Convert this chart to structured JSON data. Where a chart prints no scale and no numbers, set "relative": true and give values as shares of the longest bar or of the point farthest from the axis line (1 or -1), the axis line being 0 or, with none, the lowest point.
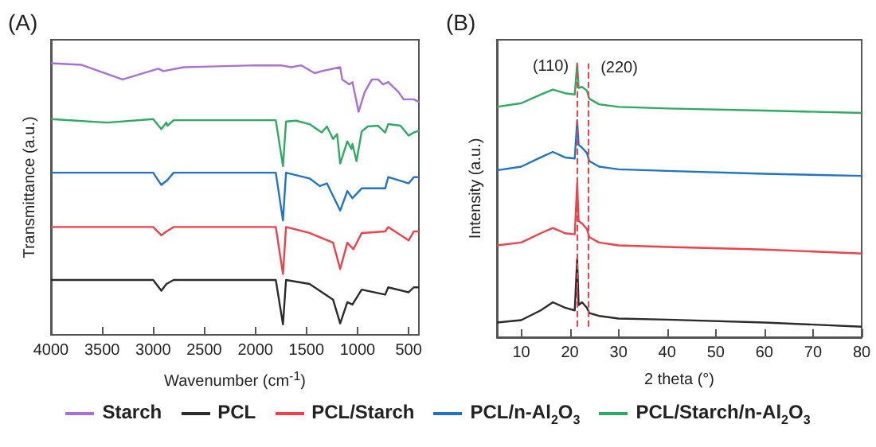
{
  "chart_data": [
    {
      "type": "line",
      "title": "(A)",
      "xlabel": "Wavenumber (cm$^{-1}$)",
      "ylabel": "Transmittance (a.u.)",
      "relative": true,
      "xlim": [
        4000,
        400
      ],
      "xticks": [
        4000,
        3500,
        3000,
        2500,
        2000,
        1500,
        1000,
        500
      ],
      "grid": false,
      "legend": "bottom",
      "marker": "none",
      "line_style": "solid",
      "series": [
        {
          "name": "Starch",
          "color": "#a86fd6",
          "x": [
            4000,
            3700,
            3300,
            2950,
            2900,
            2700,
            2000,
            1750,
            1650,
            1550,
            1420,
            1350,
            1170,
            1150,
            1080,
            1050,
            990,
            930,
            860,
            800,
            750,
            700,
            600,
            550,
            450,
            400
          ],
          "values": [
            1.0,
            0.994,
            0.938,
            0.979,
            0.97,
            0.985,
            0.992,
            0.992,
            0.985,
            0.992,
            0.962,
            0.97,
            0.985,
            0.938,
            0.919,
            0.928,
            0.814,
            0.89,
            0.938,
            0.938,
            0.919,
            0.928,
            0.89,
            0.862,
            0.862,
            0.852
          ]
        },
        {
          "name": "PCL",
          "color": "#2b2b2b",
          "x": [
            4000,
            3000,
            2920,
            2870,
            2800,
            1800,
            1730,
            1700,
            1470,
            1240,
            1170,
            1100,
            1050,
            960,
            730,
            700,
            500,
            450,
            400
          ],
          "values": [
            0.17,
            0.17,
            0.129,
            0.155,
            0.17,
            0.17,
            0,
            0.17,
            0.155,
            0.095,
            0.004,
            0.085,
            0.076,
            0.133,
            0.114,
            0.142,
            0.123,
            0.142,
            0.142
          ]
        },
        {
          "name": "PCL/Starch",
          "color": "#f0404a",
          "x": [
            4000,
            3000,
            2920,
            2870,
            2800,
            1800,
            1730,
            1700,
            1470,
            1240,
            1170,
            1100,
            1040,
            960,
            730,
            700,
            500,
            450,
            400
          ],
          "values": [
            0.373,
            0.373,
            0.341,
            0.356,
            0.373,
            0.373,
            0.193,
            0.373,
            0.35,
            0.313,
            0.212,
            0.313,
            0.288,
            0.35,
            0.356,
            0.373,
            0.322,
            0.356,
            0.356
          ]
        },
        {
          "name": "PCL/n-Al$_{2}$O$_{3}$",
          "color": "#1f74c8",
          "x": [
            4000,
            3000,
            2920,
            2860,
            2800,
            1800,
            1730,
            1700,
            1470,
            1370,
            1300,
            1240,
            1170,
            1100,
            1050,
            960,
            730,
            700,
            500,
            450,
            400
          ],
          "values": [
            0.581,
            0.581,
            0.534,
            0.553,
            0.581,
            0.581,
            0.398,
            0.581,
            0.559,
            0.53,
            0.54,
            0.492,
            0.436,
            0.511,
            0.483,
            0.521,
            0.521,
            0.564,
            0.54,
            0.564,
            0.564
          ]
        },
        {
          "name": "PCL/Starch/n-Al$_{2}$O$_{3}$",
          "color": "#2eaa62",
          "x": [
            4000,
            3450,
            3000,
            2920,
            2870,
            2860,
            2800,
            1800,
            1730,
            1700,
            1600,
            1470,
            1400,
            1350,
            1300,
            1240,
            1200,
            1170,
            1100,
            1060,
            1050,
            1010,
            960,
            900,
            800,
            730,
            700,
            580,
            500,
            450,
            400
          ],
          "values": [
            0.786,
            0.773,
            0.786,
            0.748,
            0.773,
            0.761,
            0.782,
            0.782,
            0.606,
            0.777,
            0.78,
            0.767,
            0.748,
            0.735,
            0.758,
            0.71,
            0.729,
            0.616,
            0.701,
            0.672,
            0.691,
            0.625,
            0.739,
            0.758,
            0.761,
            0.735,
            0.767,
            0.761,
            0.723,
            0.735,
            0.742
          ]
        }
      ]
    },
    {
      "type": "line",
      "title": "(B)",
      "xlabel": "2 theta (°)",
      "ylabel": "Intensity (a.u.)",
      "relative": true,
      "xlim": [
        5,
        80
      ],
      "xticks": [
        10,
        20,
        30,
        40,
        50,
        60,
        70,
        80
      ],
      "grid": false,
      "legend": false,
      "marker": "none",
      "line_style": "solid",
      "ref_lines": [
        {
          "axis": "x",
          "value": 21.4,
          "color": "#f0404a",
          "line_style": "dashed"
        },
        {
          "axis": "x",
          "value": 23.7,
          "color": "#f0404a",
          "line_style": "dashed"
        }
      ],
      "annotations": [
        {
          "text": "(110)",
          "x": 21.4,
          "y": 1
        },
        {
          "text": "(220)",
          "x": 23.7,
          "y": 0.897
        }
      ],
      "series": [
        {
          "color": "#2b2b2b",
          "x": [
            5,
            10,
            14,
            16.5,
            19,
            21,
            21.5,
            21.8,
            22.5,
            23.5,
            24,
            26,
            30,
            40,
            60,
            80
          ],
          "values": [
            0.016,
            0.025,
            0.062,
            0.093,
            0.072,
            0.062,
            0.258,
            0.082,
            0.093,
            0.072,
            0.052,
            0.041,
            0.031,
            0.027,
            0.016,
            0
          ]
        },
        {
          "color": "#f0404a",
          "x": [
            5,
            10,
            14,
            16.5,
            19,
            21,
            21.5,
            21.8,
            22.5,
            23.5,
            24,
            26,
            30,
            40,
            60,
            80
          ],
          "values": [
            0.309,
            0.32,
            0.355,
            0.375,
            0.355,
            0.351,
            0.546,
            0.402,
            0.392,
            0.371,
            0.34,
            0.32,
            0.309,
            0.303,
            0.293,
            0.278
          ]
        },
        {
          "color": "#1f74c8",
          "x": [
            5,
            10,
            14,
            16.5,
            19,
            21,
            21.5,
            21.8,
            22.5,
            23.5,
            24,
            26,
            30,
            40,
            60,
            80
          ],
          "values": [
            0.594,
            0.608,
            0.643,
            0.664,
            0.643,
            0.639,
            0.784,
            0.691,
            0.68,
            0.66,
            0.629,
            0.608,
            0.598,
            0.592,
            0.581,
            0.573
          ]
        },
        {
          "color": "#2eaa62",
          "x": [
            5,
            10,
            14,
            16.5,
            19,
            21,
            21.5,
            21.8,
            22.5,
            23.5,
            24,
            26,
            30,
            40,
            60,
            80
          ],
          "values": [
            0.835,
            0.849,
            0.882,
            0.901,
            0.887,
            0.882,
            1,
            0.907,
            0.911,
            0.897,
            0.866,
            0.845,
            0.835,
            0.829,
            0.821,
            0.812
          ]
        }
      ]
    }
  ]
}
